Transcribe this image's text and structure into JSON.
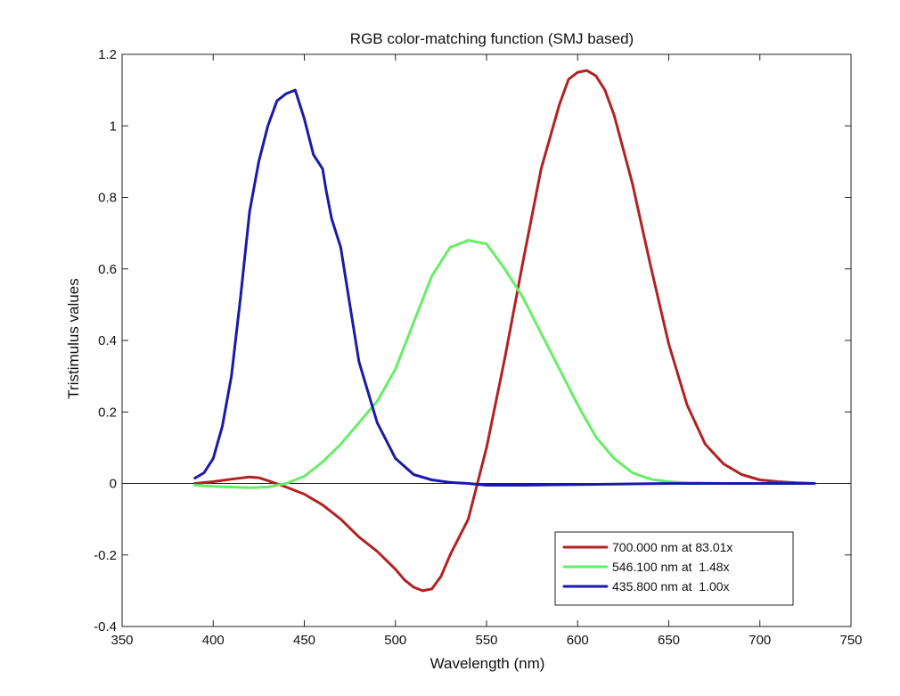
{
  "chart_data": {
    "type": "line",
    "title": "RGB color-matching function (SMJ based)",
    "xlabel": "Wavelength (nm)",
    "ylabel": "Tristimulus values",
    "xlim": [
      350,
      750
    ],
    "ylim": [
      -0.4,
      1.2
    ],
    "xticks": [
      350,
      400,
      450,
      500,
      550,
      600,
      650,
      700,
      750
    ],
    "xtick_labels": [
      "350",
      "400",
      "450",
      "500",
      "550",
      "600",
      "650",
      "700",
      "750"
    ],
    "yticks": [
      -0.4,
      -0.2,
      0,
      0.2,
      0.4,
      0.6,
      0.8,
      1,
      1.2
    ],
    "ytick_labels": [
      "-0.4",
      "-0.2",
      "0",
      "0.2",
      "0.4",
      "0.6",
      "0.8",
      "1",
      "1.2"
    ],
    "grid": false,
    "zero_line": true,
    "legend_position": "bottom-right",
    "series": [
      {
        "name": "700.000 nm at 83.01x",
        "color": "#b22222",
        "x": [
          390,
          400,
          410,
          420,
          425,
          430,
          440,
          450,
          460,
          470,
          480,
          490,
          500,
          505,
          510,
          515,
          520,
          525,
          530,
          540,
          550,
          560,
          570,
          580,
          590,
          595,
          600,
          605,
          610,
          615,
          620,
          630,
          640,
          650,
          660,
          670,
          680,
          690,
          700,
          710,
          720,
          730
        ],
        "y": [
          0.0,
          0.005,
          0.012,
          0.018,
          0.016,
          0.008,
          -0.01,
          -0.03,
          -0.06,
          -0.1,
          -0.15,
          -0.19,
          -0.24,
          -0.27,
          -0.29,
          -0.3,
          -0.295,
          -0.26,
          -0.2,
          -0.1,
          0.1,
          0.35,
          0.62,
          0.88,
          1.06,
          1.13,
          1.15,
          1.155,
          1.14,
          1.1,
          1.03,
          0.84,
          0.61,
          0.39,
          0.22,
          0.11,
          0.055,
          0.025,
          0.01,
          0.005,
          0.002,
          0.0
        ]
      },
      {
        "name": "546.100 nm at  1.48x",
        "color": "#66ee66",
        "x": [
          390,
          400,
          410,
          420,
          430,
          440,
          450,
          460,
          470,
          480,
          490,
          500,
          510,
          520,
          530,
          540,
          550,
          560,
          570,
          580,
          590,
          600,
          610,
          620,
          630,
          640,
          650,
          660,
          670,
          680,
          690,
          700,
          710,
          720,
          730
        ],
        "y": [
          -0.005,
          -0.008,
          -0.01,
          -0.012,
          -0.01,
          0.0,
          0.02,
          0.06,
          0.11,
          0.17,
          0.23,
          0.32,
          0.45,
          0.58,
          0.66,
          0.68,
          0.67,
          0.6,
          0.52,
          0.42,
          0.32,
          0.22,
          0.13,
          0.07,
          0.03,
          0.012,
          0.005,
          0.002,
          0.001,
          0.0,
          0.0,
          0.0,
          0.0,
          0.0,
          0.0
        ]
      },
      {
        "name": "435.800 nm at  1.00x",
        "color": "#1a1aaa",
        "x": [
          390,
          395,
          400,
          405,
          410,
          415,
          420,
          425,
          430,
          435,
          440,
          445,
          450,
          455,
          460,
          462,
          465,
          470,
          475,
          480,
          490,
          500,
          510,
          520,
          530,
          540,
          550,
          560,
          570,
          600,
          650,
          700,
          730
        ],
        "y": [
          0.015,
          0.03,
          0.07,
          0.16,
          0.3,
          0.52,
          0.76,
          0.9,
          1.0,
          1.07,
          1.09,
          1.1,
          1.02,
          0.92,
          0.88,
          0.82,
          0.74,
          0.66,
          0.5,
          0.34,
          0.17,
          0.07,
          0.025,
          0.01,
          0.003,
          0.0,
          -0.005,
          -0.005,
          -0.005,
          -0.003,
          0.0,
          0.0,
          0.0
        ]
      }
    ]
  }
}
